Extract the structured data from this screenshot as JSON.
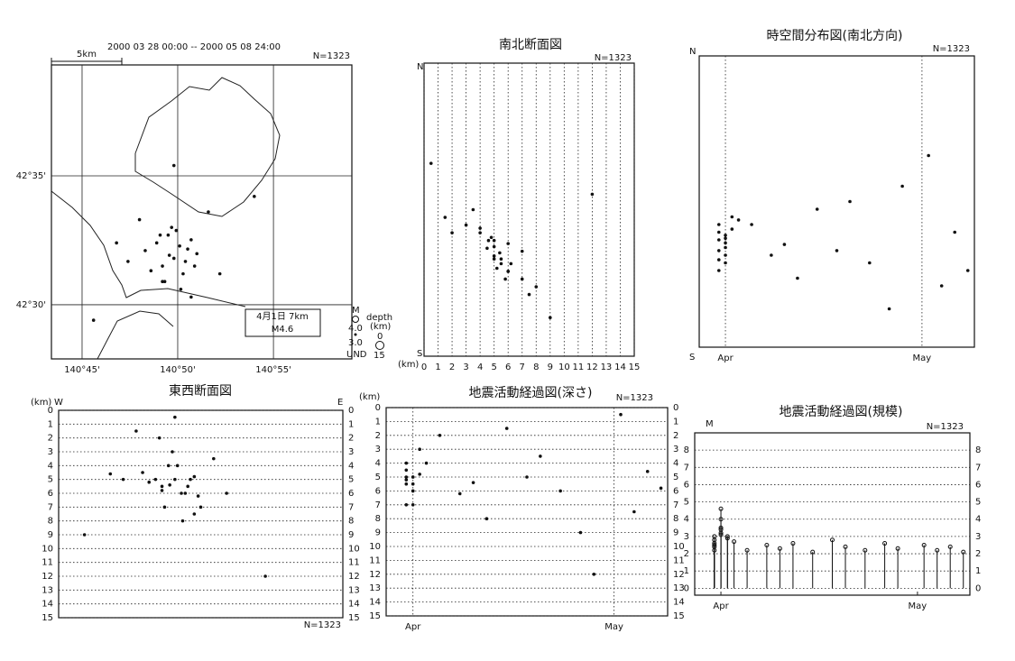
{
  "chart_data": [
    {
      "type": "scatter",
      "subtitle": "2000 03 28 00:00 -- 2000 05 08 24:00",
      "count_label": "N=1323",
      "scale_label": "5km",
      "annotation": [
        "4月1日 7km",
        "M4.6"
      ],
      "legend": {
        "magnitude_title": "M",
        "magnitudes": [
          "4.0",
          "3.0",
          "UND"
        ],
        "depth_title": "depth",
        "depth_unit": "(km)",
        "depths": [
          "0",
          "15"
        ]
      },
      "xlim": [
        140.7233,
        140.985
      ],
      "ylim": [
        42.465,
        42.655
      ],
      "xticks": [
        {
          "value": 140.75,
          "label": "140°45'"
        },
        {
          "value": 140.8333,
          "label": "140°50'"
        },
        {
          "value": 140.9167,
          "label": "140°55'"
        }
      ],
      "yticks": [
        {
          "value": 42.5,
          "label": "42°30'"
        },
        {
          "value": 42.5833,
          "label": "42°35'"
        }
      ],
      "grid": "both",
      "grid_style": "solid",
      "x": [
        140.805,
        140.815,
        140.82,
        140.825,
        140.83,
        140.835,
        140.84,
        140.845,
        140.85,
        140.81,
        140.828,
        140.838,
        140.822,
        140.832,
        140.842,
        140.818,
        140.848,
        140.826,
        140.836,
        140.8,
        140.79,
        140.86,
        140.87,
        140.76,
        140.9,
        140.83,
        140.845,
        140.78,
        140.82
      ],
      "values": [
        42.535,
        42.54,
        42.525,
        42.545,
        42.53,
        42.538,
        42.528,
        42.542,
        42.533,
        42.522,
        42.55,
        42.52,
        42.515,
        42.548,
        42.536,
        42.545,
        42.525,
        42.532,
        42.51,
        42.555,
        42.528,
        42.56,
        42.52,
        42.49,
        42.57,
        42.59,
        42.505,
        42.54,
        42.515
      ]
    },
    {
      "type": "scatter",
      "title": "南北断面図",
      "count_label": "N=1323",
      "y_top_label": "N",
      "y_bottom_label": "S",
      "xlabel": "(km)",
      "xlim": [
        0,
        15
      ],
      "ylim": [
        42.465,
        42.655
      ],
      "xticks": [
        0,
        1,
        2,
        3,
        4,
        5,
        6,
        7,
        8,
        9,
        10,
        11,
        12,
        13,
        14,
        15
      ],
      "grid": "x",
      "grid_style": "dotted",
      "x": [
        4.5,
        5,
        5.5,
        4,
        5,
        6,
        5.5,
        4.8,
        7,
        5.2,
        3,
        6,
        7,
        4,
        5,
        2,
        6.2,
        5.4,
        8,
        1.5,
        5,
        3.5,
        6,
        9,
        12,
        0.5,
        7.5,
        4.6,
        5.8
      ],
      "values": [
        42.535,
        42.54,
        42.525,
        42.545,
        42.53,
        42.538,
        42.528,
        42.542,
        42.533,
        42.522,
        42.55,
        42.52,
        42.515,
        42.548,
        42.536,
        42.545,
        42.525,
        42.532,
        42.51,
        42.555,
        42.528,
        42.56,
        42.52,
        42.49,
        42.57,
        42.59,
        42.505,
        42.54,
        42.515
      ]
    },
    {
      "type": "scatter",
      "title": "時空間分布図(南北方向)",
      "count_label": "N=1323",
      "y_top_label": "N",
      "y_bottom_label": "S",
      "xlim": [
        "2000-03-28",
        "2000-05-09"
      ],
      "ylim": [
        42.465,
        42.655
      ],
      "xticks": [
        {
          "value": "2000-04-01",
          "label": "Apr"
        },
        {
          "value": "2000-05-01",
          "label": "May"
        }
      ],
      "grid": "x",
      "grid_style": "dotted",
      "x": [
        "2000-03-31",
        "2000-03-31",
        "2000-04-01",
        "2000-03-31",
        "2000-04-01",
        "2000-04-01",
        "2000-03-31",
        "2000-04-02",
        "2000-04-01",
        "2000-03-31",
        "2000-04-02",
        "2000-04-01",
        "2000-03-31",
        "2000-04-03",
        "2000-04-01",
        "2000-04-05",
        "2000-04-08",
        "2000-04-10",
        "2000-04-12",
        "2000-04-15",
        "2000-04-18",
        "2000-04-20",
        "2000-04-23",
        "2000-04-26",
        "2000-04-28",
        "2000-05-02",
        "2000-05-04",
        "2000-05-06",
        "2000-05-08"
      ],
      "values": [
        42.535,
        42.54,
        42.525,
        42.545,
        42.53,
        42.538,
        42.528,
        42.542,
        42.533,
        42.522,
        42.55,
        42.52,
        42.515,
        42.548,
        42.536,
        42.545,
        42.525,
        42.532,
        42.51,
        42.555,
        42.528,
        42.56,
        42.52,
        42.49,
        42.57,
        42.59,
        42.505,
        42.54,
        42.515
      ]
    },
    {
      "type": "scatter",
      "title": "東西断面図",
      "count_label": "N=1323",
      "ylabel": "(km)",
      "x_left_label": "W",
      "x_right_label": "E",
      "xlim": [
        140.74,
        140.96
      ],
      "ylim": [
        15,
        0
      ],
      "yticks": [
        0,
        1,
        2,
        3,
        4,
        5,
        6,
        7,
        8,
        9,
        10,
        11,
        12,
        13,
        14,
        15
      ],
      "yticks_side": "both",
      "grid": "y",
      "grid_style": "dotted",
      "x": [
        140.805,
        140.815,
        140.82,
        140.825,
        140.83,
        140.835,
        140.84,
        140.845,
        140.85,
        140.81,
        140.828,
        140.838,
        140.822,
        140.832,
        140.842,
        140.818,
        140.848,
        140.826,
        140.836,
        140.8,
        140.79,
        140.86,
        140.87,
        140.76,
        140.9,
        140.83,
        140.845,
        140.78,
        140.82
      ],
      "values": [
        4.5,
        5,
        5.5,
        4,
        5,
        6,
        5.5,
        4.8,
        7,
        5.2,
        3,
        6,
        7,
        4,
        5,
        2,
        6.2,
        5.4,
        8,
        1.5,
        5,
        3.5,
        6,
        9,
        12,
        0.5,
        7.5,
        4.6,
        5.8
      ]
    },
    {
      "type": "scatter",
      "title": "地震活動経過図(深さ)",
      "count_label": "N=1323",
      "ylabel": "(km)",
      "xlim": [
        "2000-03-28",
        "2000-05-09"
      ],
      "ylim": [
        15,
        0
      ],
      "yticks": [
        0,
        1,
        2,
        3,
        4,
        5,
        6,
        7,
        8,
        9,
        10,
        11,
        12,
        13,
        14,
        15
      ],
      "yticks_side": "both",
      "xticks": [
        {
          "value": "2000-04-01",
          "label": "Apr"
        },
        {
          "value": "2000-05-01",
          "label": "May"
        }
      ],
      "grid": "both",
      "grid_style": "dotted",
      "x": [
        "2000-03-31",
        "2000-03-31",
        "2000-04-01",
        "2000-03-31",
        "2000-04-01",
        "2000-04-01",
        "2000-03-31",
        "2000-04-02",
        "2000-04-01",
        "2000-03-31",
        "2000-04-02",
        "2000-04-01",
        "2000-03-31",
        "2000-04-03",
        "2000-04-01",
        "2000-04-05",
        "2000-04-08",
        "2000-04-10",
        "2000-04-12",
        "2000-04-15",
        "2000-04-18",
        "2000-04-20",
        "2000-04-23",
        "2000-04-26",
        "2000-04-28",
        "2000-05-02",
        "2000-05-04",
        "2000-05-06",
        "2000-05-08"
      ],
      "values": [
        4.5,
        5,
        5.5,
        4,
        5,
        6,
        5.5,
        4.8,
        7,
        5.2,
        3,
        6,
        7,
        4,
        5,
        2,
        6.2,
        5.4,
        8,
        1.5,
        5,
        3.5,
        6,
        9,
        12,
        0.5,
        7.5,
        4.6,
        5.8
      ]
    },
    {
      "type": "stem",
      "title": "地震活動経過図(規模)",
      "count_label": "N=1323",
      "ylabel": "M",
      "xlim": [
        "2000-03-28",
        "2000-05-09"
      ],
      "ylim": [
        -0.4,
        9
      ],
      "yticks": [
        0,
        1,
        2,
        3,
        4,
        5,
        6,
        7,
        8
      ],
      "yticks_side": "both",
      "xticks": [
        {
          "value": "2000-04-01",
          "label": "Apr"
        },
        {
          "value": "2000-05-01",
          "label": "May"
        }
      ],
      "grid": "y",
      "grid_style": "dotted",
      "x": [
        "2000-03-31",
        "2000-03-31",
        "2000-04-01",
        "2000-03-31",
        "2000-04-01",
        "2000-04-01",
        "2000-03-31",
        "2000-04-02",
        "2000-04-01",
        "2000-03-31",
        "2000-04-02",
        "2000-04-01",
        "2000-03-31",
        "2000-04-03",
        "2000-04-01",
        "2000-04-05",
        "2000-04-08",
        "2000-04-10",
        "2000-04-12",
        "2000-04-15",
        "2000-04-18",
        "2000-04-20",
        "2000-04-23",
        "2000-04-26",
        "2000-04-28",
        "2000-05-02",
        "2000-05-04",
        "2000-05-06",
        "2000-05-08"
      ],
      "values": [
        2.5,
        3,
        3.5,
        2.8,
        4,
        3.2,
        2.6,
        3,
        4.6,
        2.2,
        2.9,
        3.4,
        2.4,
        2.7,
        3.1,
        2.2,
        2.5,
        2.3,
        2.6,
        2.1,
        2.8,
        2.4,
        2.2,
        2.6,
        2.3,
        2.5,
        2.2,
        2.4,
        2.1
      ]
    }
  ]
}
